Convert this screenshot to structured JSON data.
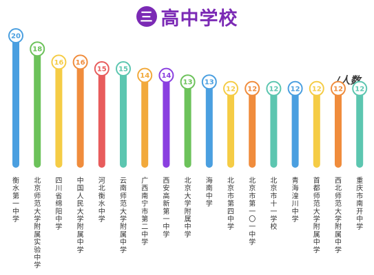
{
  "header": {
    "badge_text": "三",
    "title": "高中学校"
  },
  "unit_label": "/人数",
  "chart_data": {
    "type": "bar",
    "orientation": "vertical",
    "categories": [
      "衡水第一中学",
      "北京师范大学附属实验中学",
      "四川省绵阳中学",
      "中国人民大学附属中学",
      "河北衡水中学",
      "云南师范大学附属中学",
      "广西南宁市第二中学",
      "西安高新第一中学",
      "北京大学附属中学",
      "海南中学",
      "北京市第四中学",
      "北京市第一〇一中学",
      "北京市十一学校",
      "青海湟川中学",
      "首都师范大学附属中学",
      "西北师范大学附属中学",
      "重庆市南开中学"
    ],
    "values": [
      20,
      18,
      16,
      16,
      15,
      15,
      14,
      14,
      13,
      13,
      12,
      12,
      12,
      12,
      12,
      12,
      12
    ],
    "colors": [
      "#4a9fe0",
      "#6cc25a",
      "#f5cc45",
      "#f08c3c",
      "#e85c5c",
      "#5cc6b0",
      "#f2a93b",
      "#8a3fe0",
      "#6cc25a",
      "#4a9fe0",
      "#f5cc45",
      "#f08c3c",
      "#5cc6b0",
      "#4a9fe0",
      "#f5cc45",
      "#f08c3c",
      "#5cc6b0"
    ],
    "ylim": [
      0,
      20
    ],
    "grid": false,
    "legend": "none"
  }
}
